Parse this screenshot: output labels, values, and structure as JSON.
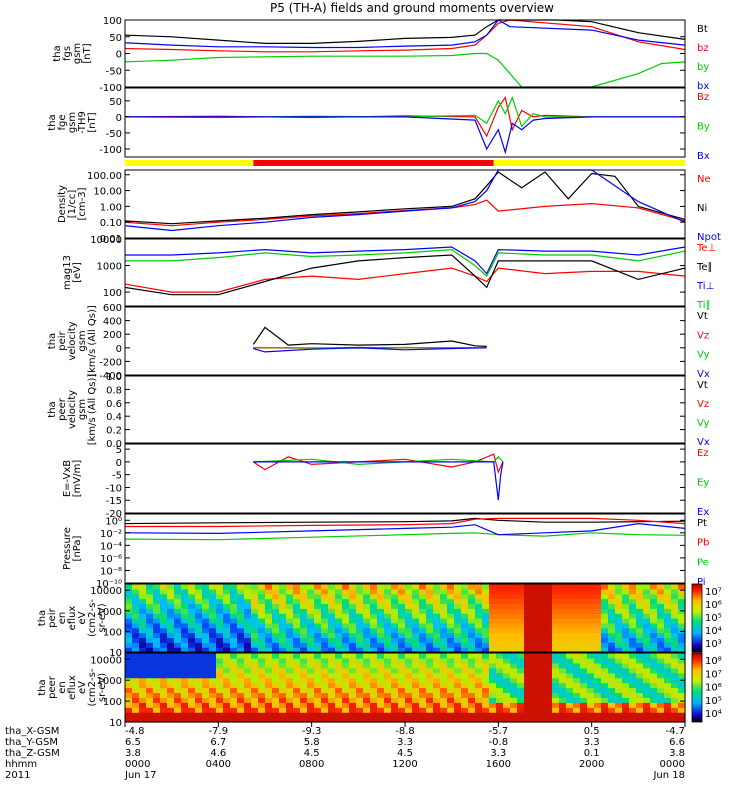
{
  "figure": {
    "title": "P5 (TH-A) fields and ground moments overview"
  },
  "colors": {
    "black": "#000000",
    "red": "#ff0000",
    "green": "#00cc00",
    "blue": "#0000ff",
    "yellow": "#ffff00"
  },
  "chart_data": [
    {
      "id": "fgs",
      "type": "line",
      "ylabel": [
        "tha",
        "fgs",
        "gsm",
        "[nT]"
      ],
      "ylim": [
        -100,
        100
      ],
      "ticks": [
        "100",
        "50",
        "0",
        "-50",
        "-100"
      ],
      "tickvals": [
        100,
        50,
        0,
        -50,
        -100
      ],
      "series": [
        {
          "name": "Bt",
          "color": "black",
          "x": [
            0,
            2,
            4,
            6,
            8,
            10,
            12,
            14,
            15,
            15.5,
            16,
            16.5,
            17.5,
            18.5,
            20,
            22,
            24
          ],
          "y": [
            55,
            50,
            40,
            30,
            30,
            36,
            45,
            48,
            55,
            80,
            100,
            100,
            100,
            100,
            95,
            62,
            42
          ]
        },
        {
          "name": "bz",
          "color": "red",
          "x": [
            0,
            2,
            4,
            6,
            8,
            10,
            12,
            14,
            15,
            15.5,
            16,
            16.5,
            20,
            22,
            24
          ],
          "y": [
            15,
            12,
            8,
            5,
            5,
            8,
            10,
            15,
            25,
            55,
            90,
            100,
            80,
            35,
            12
          ]
        },
        {
          "name": "by",
          "color": "green",
          "x": [
            0,
            2,
            4,
            6,
            8,
            10,
            12,
            14,
            15,
            15.5,
            16,
            16.5,
            17,
            18,
            20,
            22,
            23,
            24
          ],
          "y": [
            -25,
            -20,
            -12,
            -10,
            -8,
            -8,
            -8,
            -6,
            0,
            0,
            -20,
            -60,
            -100,
            -100,
            -100,
            -60,
            -30,
            -25
          ]
        },
        {
          "name": "bx",
          "color": "blue",
          "x": [
            0,
            2,
            4,
            6,
            8,
            10,
            12,
            14,
            15,
            15.5,
            16,
            16.5,
            20,
            22,
            24
          ],
          "y": [
            32,
            25,
            20,
            20,
            18,
            18,
            22,
            25,
            35,
            55,
            100,
            80,
            70,
            40,
            25
          ]
        }
      ]
    },
    {
      "id": "fge",
      "type": "line",
      "ylabel": [
        "tha",
        "fge",
        "gsm",
        "-TH9",
        "[nT]"
      ],
      "ylim": [
        -125,
        90
      ],
      "ticks": [
        "50",
        "0",
        "-50",
        "-100"
      ],
      "tickvals": [
        50,
        0,
        -50,
        -100
      ],
      "series": [
        {
          "name": "Bz",
          "color": "red",
          "x": [
            0,
            4,
            8,
            12,
            15,
            15.5,
            16,
            16.3,
            16.6,
            17,
            17.5,
            18,
            20,
            24
          ],
          "y": [
            0,
            2,
            -2,
            3,
            0,
            -60,
            30,
            60,
            -40,
            20,
            0,
            5,
            0,
            0
          ]
        },
        {
          "name": "By",
          "color": "green",
          "x": [
            0,
            4,
            8,
            12,
            15,
            15.5,
            16,
            16.3,
            16.6,
            17,
            17.5,
            18,
            20,
            24
          ],
          "y": [
            0,
            -2,
            2,
            0,
            5,
            -20,
            50,
            10,
            60,
            -30,
            10,
            0,
            0,
            0
          ]
        },
        {
          "name": "Bx",
          "color": "blue",
          "x": [
            0,
            4,
            8,
            12,
            15,
            15.5,
            16,
            16.3,
            16.6,
            17,
            17.5,
            18,
            20,
            24
          ],
          "y": [
            0,
            0,
            0,
            0,
            -10,
            -100,
            -40,
            -110,
            -20,
            -40,
            -10,
            -5,
            0,
            0
          ]
        }
      ]
    },
    {
      "id": "density",
      "type": "line",
      "ylog": true,
      "ylabel": [
        "Density",
        "[1/cc]",
        "[cm-3]"
      ],
      "ylim": [
        0.01,
        200
      ],
      "ticks": [
        "100.00",
        "10.00",
        "1.00",
        "0.10",
        "0.01"
      ],
      "tickvals": [
        100,
        10,
        1,
        0.1,
        0.01
      ],
      "series": [
        {
          "name": "Ne",
          "color": "red",
          "x": [
            0,
            2,
            4,
            6,
            8,
            10,
            12,
            14,
            15,
            15.5,
            16,
            18,
            20,
            22,
            24
          ],
          "y": [
            0.1,
            0.06,
            0.1,
            0.15,
            0.25,
            0.35,
            0.55,
            0.8,
            1.3,
            2.5,
            0.5,
            1.0,
            1.5,
            0.8,
            0.12
          ]
        },
        {
          "name": "Ni",
          "color": "black",
          "x": [
            0,
            2,
            4,
            6,
            8,
            10,
            12,
            14,
            15,
            15.5,
            16,
            17,
            18,
            19,
            20,
            21,
            22,
            24
          ],
          "y": [
            0.12,
            0.08,
            0.12,
            0.18,
            0.3,
            0.45,
            0.7,
            1.0,
            3,
            20,
            150,
            15,
            150,
            3,
            120,
            80,
            1,
            0.15
          ]
        },
        {
          "name": "Npot",
          "color": "blue",
          "x": [
            0,
            2,
            4,
            6,
            8,
            10,
            12,
            14,
            15,
            15.5,
            16,
            18,
            20,
            22,
            24
          ],
          "y": [
            0.06,
            0.03,
            0.06,
            0.1,
            0.2,
            0.3,
            0.5,
            0.8,
            2,
            10,
            200,
            200,
            200,
            2,
            0.1
          ]
        }
      ]
    },
    {
      "id": "temp",
      "type": "line",
      "ylog": true,
      "ylabel": [
        "mag13",
        "[eV]"
      ],
      "ylim": [
        30,
        10000
      ],
      "ticks": [
        "10000",
        "1000",
        "100"
      ],
      "tickvals": [
        10000,
        1000,
        100
      ],
      "series": [
        {
          "name": "Te⊥",
          "color": "red",
          "x": [
            0,
            2,
            4,
            6,
            8,
            10,
            12,
            14,
            15,
            15.5,
            16,
            18,
            20,
            22,
            24
          ],
          "y": [
            200,
            100,
            100,
            300,
            400,
            300,
            500,
            800,
            400,
            250,
            800,
            500,
            600,
            600,
            400
          ]
        },
        {
          "name": "Te∥",
          "color": "black",
          "x": [
            0,
            2,
            4,
            6,
            8,
            10,
            12,
            14,
            15,
            15.5,
            16,
            18,
            20,
            22,
            24
          ],
          "y": [
            150,
            80,
            80,
            250,
            800,
            1500,
            2000,
            2500,
            400,
            150,
            1500,
            1500,
            1500,
            300,
            800
          ]
        },
        {
          "name": "Ti⊥",
          "color": "blue",
          "x": [
            0,
            2,
            4,
            6,
            8,
            10,
            12,
            14,
            15,
            15.5,
            16,
            18,
            20,
            22,
            24
          ],
          "y": [
            2500,
            2500,
            3000,
            4000,
            3000,
            3500,
            4000,
            5000,
            1500,
            500,
            4000,
            3500,
            3500,
            2500,
            5000
          ]
        },
        {
          "name": "Ti∥",
          "color": "green",
          "x": [
            0,
            2,
            4,
            6,
            8,
            10,
            12,
            14,
            15,
            15.5,
            16,
            18,
            20,
            22,
            24
          ],
          "y": [
            1500,
            1500,
            2000,
            3000,
            2200,
            2500,
            3000,
            4000,
            1000,
            400,
            3000,
            2500,
            2500,
            1500,
            3500
          ]
        }
      ]
    },
    {
      "id": "peir-vel",
      "type": "line",
      "ylabel": [
        "tha",
        "peir",
        "velocity",
        "gsm",
        "[km/s (All Qs)]"
      ],
      "ylim": [
        -400,
        600
      ],
      "ticks": [
        "600",
        "400",
        "200",
        "0",
        "-200",
        "-400"
      ],
      "tickvals": [
        600,
        400,
        200,
        0,
        -200,
        -400
      ],
      "series": [
        {
          "name": "Vt",
          "color": "black",
          "x": [
            5.5,
            6,
            7,
            8,
            10,
            12,
            14,
            15,
            15.5
          ],
          "y": [
            50,
            300,
            40,
            60,
            40,
            50,
            100,
            30,
            20
          ]
        },
        {
          "name": "Vz",
          "color": "red",
          "x": [
            5.5,
            8,
            10,
            12,
            14,
            15.5
          ],
          "y": [
            0,
            -5,
            5,
            0,
            0,
            0
          ]
        },
        {
          "name": "Vy",
          "color": "green",
          "x": [
            5.5,
            8,
            10,
            12,
            14,
            15.5
          ],
          "y": [
            5,
            0,
            -5,
            5,
            0,
            0
          ]
        },
        {
          "name": "Vx",
          "color": "blue",
          "x": [
            5.5,
            6,
            8,
            10,
            12,
            14,
            15.5
          ],
          "y": [
            -10,
            -60,
            -20,
            0,
            -30,
            -10,
            0
          ]
        }
      ]
    },
    {
      "id": "peer-vel",
      "type": "line",
      "ylabel": [
        "tha",
        "peer",
        "velocity",
        "gsm",
        "[km/s (All Qs)]"
      ],
      "ylim": [
        0,
        1
      ],
      "ticks": [
        "1.0",
        "0.8",
        "0.6",
        "0.4",
        "0.2",
        "0.0"
      ],
      "tickvals": [
        1,
        0.8,
        0.6,
        0.4,
        0.2,
        0
      ],
      "series": [
        {
          "name": "Vt",
          "color": "black",
          "x": [],
          "y": []
        },
        {
          "name": "Vz",
          "color": "red",
          "x": [],
          "y": []
        },
        {
          "name": "Vy",
          "color": "green",
          "x": [],
          "y": []
        },
        {
          "name": "Vx",
          "color": "blue",
          "x": [],
          "y": []
        }
      ]
    },
    {
      "id": "efield",
      "type": "line",
      "ylabel": [
        "E=-VxB",
        "[mV/m]"
      ],
      "ylim": [
        -20,
        7
      ],
      "ticks": [
        "5",
        "0",
        "-5",
        "-10",
        "-15",
        "-20"
      ],
      "tickvals": [
        5,
        0,
        -5,
        -10,
        -15,
        -20
      ],
      "series": [
        {
          "name": "Ez",
          "color": "red",
          "x": [
            5.5,
            6,
            7,
            8,
            10,
            12,
            14,
            15,
            15.8,
            16,
            16.2
          ],
          "y": [
            0,
            -3,
            2,
            -1,
            0,
            1,
            -2,
            0,
            3,
            -4,
            0
          ]
        },
        {
          "name": "Ey",
          "color": "green",
          "x": [
            5.5,
            8,
            10,
            12,
            14,
            15.8,
            16,
            16.2
          ],
          "y": [
            0,
            1,
            -1,
            0,
            1,
            0,
            2,
            0
          ]
        },
        {
          "name": "Ex",
          "color": "blue",
          "x": [
            5.5,
            10,
            15.8,
            16,
            16.1,
            16.2
          ],
          "y": [
            0,
            0,
            0,
            -15,
            -5,
            0
          ]
        }
      ]
    },
    {
      "id": "pressure",
      "type": "line",
      "ylog": true,
      "ylabel": [
        "Pressure",
        "[nPa]"
      ],
      "ylim": [
        1e-10,
        10
      ],
      "ticks": [
        "10⁰",
        "10⁻²",
        "10⁻⁴",
        "10⁻⁶",
        "10⁻⁸",
        "10⁻¹⁰"
      ],
      "tickvals": [
        1,
        0.01,
        0.0001,
        1e-06,
        1e-08,
        1e-10
      ],
      "series": [
        {
          "name": "Pt",
          "color": "black",
          "x": [
            0,
            4,
            8,
            12,
            14,
            15,
            16,
            18,
            20,
            22,
            24
          ],
          "y": [
            0.3,
            0.4,
            0.5,
            0.6,
            0.8,
            2,
            1,
            0.5,
            0.5,
            0.6,
            0.7
          ]
        },
        {
          "name": "Pb",
          "color": "red",
          "x": [
            0,
            4,
            8,
            12,
            14,
            15,
            16,
            18,
            20,
            22,
            24
          ],
          "y": [
            0.1,
            0.1,
            0.15,
            0.2,
            0.3,
            1.5,
            2,
            2,
            2,
            1,
            0.3
          ]
        },
        {
          "name": "Pe",
          "color": "green",
          "x": [
            0,
            4,
            8,
            12,
            14,
            15,
            16,
            18,
            20,
            22,
            24
          ],
          "y": [
            0.001,
            0.0008,
            0.002,
            0.005,
            0.008,
            0.01,
            0.005,
            0.003,
            0.01,
            0.005,
            0.004
          ]
        },
        {
          "name": "Pi",
          "color": "blue",
          "x": [
            0,
            4,
            8,
            12,
            14,
            15,
            16,
            18,
            20,
            22,
            24
          ],
          "y": [
            0.01,
            0.008,
            0.02,
            0.05,
            0.08,
            0.2,
            0.005,
            0.01,
            0.02,
            0.3,
            0.05
          ]
        }
      ]
    },
    {
      "id": "peir-eflux",
      "type": "heatmap",
      "ylog": true,
      "ylabel": [
        "tha",
        "peir",
        "en",
        "eflux",
        "eV",
        "(cm2-s-",
        "sr-eV)"
      ],
      "ylim": [
        10,
        20000
      ],
      "ticks": [
        "10000",
        "1000",
        "100",
        "10"
      ],
      "tickvals": [
        10000,
        1000,
        100,
        10
      ],
      "colorbar_ticks": [
        "10⁷",
        "10⁶",
        "10⁵",
        "10⁴",
        "10³"
      ]
    },
    {
      "id": "peer-eflux",
      "type": "heatmap",
      "ylog": true,
      "ylabel": [
        "tha",
        "peer",
        "en",
        "eflux",
        "eV",
        "(cm2-s-",
        "sr-eV)"
      ],
      "ylim": [
        10,
        20000
      ],
      "ticks": [
        "10000",
        "1000",
        "100",
        "10"
      ],
      "tickvals": [
        10000,
        1000,
        100,
        10
      ],
      "colorbar_ticks": [
        "10⁸",
        "10⁷",
        "10⁶",
        "10⁵",
        "10⁴"
      ]
    }
  ],
  "xaxis": {
    "range_hours": [
      0,
      24
    ],
    "rows": [
      {
        "label": "tha_X-GSM",
        "values": [
          "-4.8",
          "-7.9",
          "-9.3",
          "-8.8",
          "-5.7",
          "0.5",
          "-4.7"
        ]
      },
      {
        "label": "tha_Y-GSM",
        "values": [
          "6.5",
          "6.7",
          "5.8",
          "3.3",
          "-0.8",
          "3.3",
          "6.6"
        ]
      },
      {
        "label": "tha_Z-GSM",
        "values": [
          "3.8",
          "4.6",
          "4.5",
          "4.5",
          "3.3",
          "0.1",
          "3.8"
        ]
      },
      {
        "label": "hhmm",
        "values": [
          "0000",
          "0400",
          "0800",
          "1200",
          "1600",
          "2000",
          "0000"
        ]
      },
      {
        "label": "2011",
        "values": [
          "Jun 17",
          "",
          "",
          "",
          "",
          "",
          "Jun 18"
        ]
      }
    ]
  },
  "modebar": [
    {
      "from": 0,
      "to": 5.5,
      "color": "yellow"
    },
    {
      "from": 5.5,
      "to": 15.8,
      "color": "red"
    },
    {
      "from": 15.8,
      "to": 24,
      "color": "yellow"
    }
  ]
}
